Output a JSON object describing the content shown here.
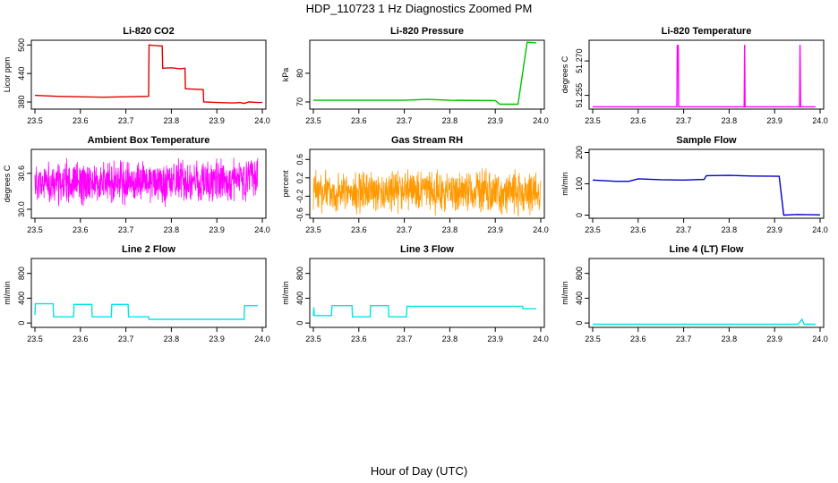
{
  "figure": {
    "title": "HDP_110723  1 Hz Diagnostics Zoomed PM",
    "xlabel": "Hour of Day (UTC)"
  },
  "chart_data": [
    {
      "type": "line",
      "title": "Li-820 CO2",
      "ylabel": "Licor ppm",
      "color": "#e00000",
      "xlim": [
        23.5,
        24.0
      ],
      "xticks": [
        "23.5",
        "23.6",
        "23.7",
        "23.8",
        "23.9",
        "24.0"
      ],
      "ylim": [
        365,
        510
      ],
      "yticks": [
        "380",
        "440",
        "500"
      ],
      "series": [
        {
          "x": [
            23.5,
            23.52,
            23.55,
            23.6,
            23.65,
            23.7,
            23.75,
            23.751,
            23.76,
            23.78,
            23.781,
            23.8,
            23.82,
            23.83,
            23.831,
            23.85,
            23.87,
            23.871,
            23.9,
            23.94,
            23.95,
            23.96,
            23.97,
            23.99,
            24.0
          ],
          "y": [
            394,
            393,
            392,
            391,
            390,
            391,
            392,
            500,
            499,
            498,
            451,
            452,
            450,
            451,
            408,
            407,
            406,
            380,
            379,
            378,
            379,
            377,
            380,
            379,
            379
          ]
        }
      ]
    },
    {
      "type": "line",
      "title": "Li-820 Pressure",
      "ylabel": "kPa",
      "color": "#00c000",
      "xlim": [
        23.5,
        24.0
      ],
      "xticks": [
        "23.5",
        "23.6",
        "23.7",
        "23.8",
        "23.9",
        "24.0"
      ],
      "ylim": [
        67.5,
        91.5
      ],
      "yticks": [
        "70",
        "80"
      ],
      "series": [
        {
          "x": [
            23.5,
            23.6,
            23.7,
            23.75,
            23.8,
            23.9,
            23.91,
            23.92,
            23.95,
            23.96,
            23.97,
            23.99
          ],
          "y": [
            70.6,
            70.6,
            70.6,
            70.9,
            70.6,
            70.5,
            69.2,
            69.2,
            69.2,
            80.0,
            90.8,
            90.6
          ]
        }
      ]
    },
    {
      "type": "line",
      "title": "Li-820 Temperature",
      "ylabel": "degrees C",
      "color": "#ff00ff",
      "xlim": [
        23.5,
        24.0
      ],
      "xticks": [
        "23.5",
        "23.6",
        "23.7",
        "23.8",
        "23.9",
        "24.0"
      ],
      "ylim": [
        51.249,
        51.279
      ],
      "yticks": [
        "51.255",
        "51.270"
      ],
      "series": [
        {
          "x": [
            23.5,
            23.685,
            23.686,
            23.687,
            23.688,
            23.689,
            23.833,
            23.834,
            23.835,
            23.955,
            23.956,
            23.957,
            23.99
          ],
          "y": [
            51.25,
            51.25,
            51.277,
            51.265,
            51.277,
            51.25,
            51.25,
            51.277,
            51.25,
            51.25,
            51.277,
            51.25,
            51.25
          ]
        }
      ]
    },
    {
      "type": "line",
      "title": "Ambient Box Temperature",
      "ylabel": "degrees C",
      "color": "#ff00ff",
      "xlim": [
        23.5,
        24.0
      ],
      "xticks": [
        "23.5",
        "23.6",
        "23.7",
        "23.8",
        "23.9",
        "24.0"
      ],
      "ylim": [
        29.85,
        31.0
      ],
      "yticks": [
        "30.0",
        "30.6"
      ],
      "series": [
        {
          "x": [
            23.5,
            23.52,
            23.54,
            23.56,
            23.58,
            23.6,
            23.62,
            23.64,
            23.66,
            23.68,
            23.7,
            23.72,
            23.74,
            23.76,
            23.78,
            23.8,
            23.82,
            23.84,
            23.86,
            23.88,
            23.9,
            23.92,
            23.94,
            23.96,
            23.98,
            23.99
          ],
          "y": [
            30.45,
            30.4,
            30.45,
            30.4,
            30.5,
            30.42,
            30.45,
            30.4,
            30.45,
            30.5,
            30.42,
            30.45,
            30.5,
            30.45,
            30.42,
            30.45,
            30.5,
            30.45,
            30.42,
            30.45,
            30.48,
            30.45,
            30.5,
            30.45,
            30.55,
            30.5
          ]
        }
      ]
    },
    {
      "type": "line",
      "title": "Gas Stream RH",
      "ylabel": "percent",
      "color": "#ff9900",
      "xlim": [
        23.5,
        24.0
      ],
      "xticks": [
        "23.5",
        "23.6",
        "23.7",
        "23.8",
        "23.9",
        "24.0"
      ],
      "ylim": [
        -0.68,
        0.82
      ],
      "yticks": [
        "-0.6",
        "-0.2",
        "0.2",
        "0.6"
      ],
      "series": [
        {
          "x": [
            23.5,
            23.52,
            23.54,
            23.56,
            23.58,
            23.6,
            23.62,
            23.64,
            23.66,
            23.68,
            23.7,
            23.72,
            23.74,
            23.76,
            23.78,
            23.8,
            23.82,
            23.84,
            23.86,
            23.88,
            23.9,
            23.92,
            23.94,
            23.96,
            23.98,
            24.0
          ],
          "y": [
            -0.1,
            -0.12,
            -0.08,
            -0.1,
            -0.15,
            -0.1,
            -0.05,
            -0.1,
            -0.08,
            -0.12,
            -0.05,
            -0.1,
            -0.08,
            -0.12,
            -0.1,
            -0.08,
            -0.12,
            -0.1,
            -0.08,
            -0.12,
            -0.1,
            -0.14,
            -0.1,
            -0.18,
            -0.12,
            -0.1
          ]
        }
      ]
    },
    {
      "type": "line",
      "title": "Sample Flow",
      "ylabel": "ml/min",
      "color": "#0000cc",
      "xlim": [
        23.5,
        24.0
      ],
      "xticks": [
        "23.5",
        "23.6",
        "23.7",
        "23.8",
        "23.9",
        "24.0"
      ],
      "ylim": [
        -10,
        210
      ],
      "yticks": [
        "0",
        "100",
        "200"
      ],
      "series": [
        {
          "x": [
            23.5,
            23.55,
            23.58,
            23.6,
            23.65,
            23.7,
            23.745,
            23.75,
            23.8,
            23.85,
            23.91,
            23.92,
            23.95,
            24.0
          ],
          "y": [
            112,
            108,
            108,
            116,
            113,
            112,
            114,
            126,
            127,
            125,
            124,
            0,
            2,
            1
          ]
        }
      ]
    },
    {
      "type": "line",
      "title": "Line 2 Flow",
      "ylabel": "ml/min",
      "color": "#00e5e5",
      "xlim": [
        23.5,
        24.0
      ],
      "xticks": [
        "23.5",
        "23.6",
        "23.7",
        "23.8",
        "23.9",
        "24.0"
      ],
      "ylim": [
        -70,
        1040
      ],
      "yticks": [
        "0",
        "400",
        "800"
      ],
      "series": [
        {
          "x": [
            23.5,
            23.501,
            23.54,
            23.541,
            23.585,
            23.586,
            23.625,
            23.626,
            23.668,
            23.669,
            23.705,
            23.706,
            23.75,
            23.751,
            23.96,
            23.961,
            23.99
          ],
          "y": [
            130,
            310,
            310,
            100,
            100,
            300,
            300,
            100,
            100,
            300,
            300,
            100,
            100,
            60,
            60,
            280,
            280
          ]
        }
      ]
    },
    {
      "type": "line",
      "title": "Line 3 Flow",
      "ylabel": "ml/min",
      "color": "#00e5e5",
      "xlim": [
        23.5,
        24.0
      ],
      "xticks": [
        "23.5",
        "23.6",
        "23.7",
        "23.8",
        "23.9",
        "24.0"
      ],
      "ylim": [
        -70,
        1040
      ],
      "yticks": [
        "0",
        "400",
        "800"
      ],
      "series": [
        {
          "x": [
            23.5,
            23.501,
            23.502,
            23.54,
            23.541,
            23.585,
            23.586,
            23.625,
            23.626,
            23.665,
            23.666,
            23.705,
            23.706,
            23.96,
            23.961,
            23.99
          ],
          "y": [
            120,
            250,
            120,
            120,
            280,
            280,
            100,
            100,
            280,
            280,
            100,
            100,
            270,
            270,
            230,
            230
          ]
        }
      ]
    },
    {
      "type": "line",
      "title": "Line 4 (LT) Flow",
      "ylabel": "ml/min",
      "color": "#00e5e5",
      "xlim": [
        23.5,
        24.0
      ],
      "xticks": [
        "23.5",
        "23.6",
        "23.7",
        "23.8",
        "23.9",
        "24.0"
      ],
      "ylim": [
        -70,
        1040
      ],
      "yticks": [
        "0",
        "400",
        "800"
      ],
      "series": [
        {
          "x": [
            23.5,
            23.95,
            23.955,
            23.96,
            23.965,
            23.99
          ],
          "y": [
            -20,
            -20,
            10,
            60,
            -20,
            -20
          ]
        }
      ]
    }
  ]
}
